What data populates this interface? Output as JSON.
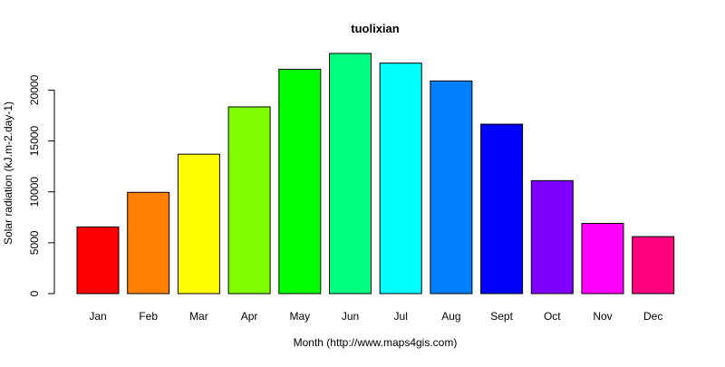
{
  "chart_data": {
    "type": "bar",
    "title": "tuolixian",
    "xlabel": "Month (http://www.maps4gis.com)",
    "ylabel": "Solar radiation (kJ.m-2.day-1)",
    "categories": [
      "Jan",
      "Feb",
      "Mar",
      "Apr",
      "May",
      "Jun",
      "Jul",
      "Aug",
      "Sept",
      "Oct",
      "Nov",
      "Dec"
    ],
    "values": [
      6550,
      9950,
      13700,
      18350,
      22050,
      23600,
      22650,
      20900,
      16650,
      11100,
      6900,
      5600
    ],
    "colors": [
      "#FF0000",
      "#FF8000",
      "#FFFF00",
      "#80FF00",
      "#00FF00",
      "#00FF80",
      "#00FFFF",
      "#0080FF",
      "#0000FF",
      "#8000FF",
      "#FF00FF",
      "#FF0080"
    ],
    "ylim": [
      0,
      23600
    ],
    "yticks": [
      0,
      5000,
      10000,
      15000,
      20000
    ],
    "ytick_labels": [
      "0",
      "5000",
      "10000",
      "15000",
      "20000"
    ],
    "grid": false,
    "legend": "none"
  }
}
